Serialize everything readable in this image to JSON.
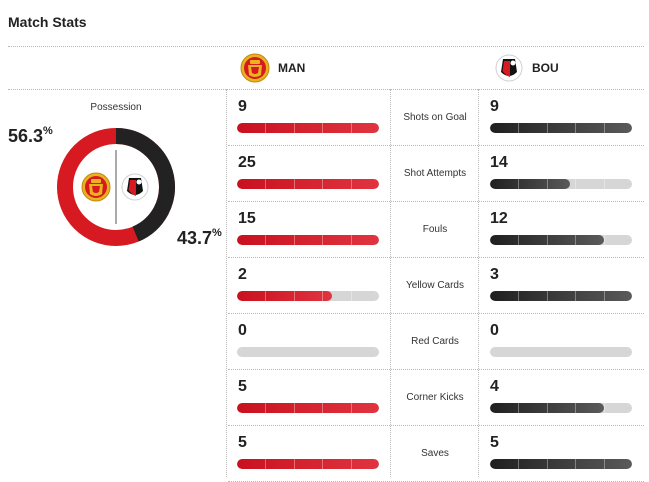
{
  "title": "Match Stats",
  "colors": {
    "home": "#d71921",
    "away": "#222222",
    "track": "#d6d6d6"
  },
  "teams": {
    "home": {
      "abbr": "MAN",
      "logo_icon": "manchester-united-crest-icon"
    },
    "away": {
      "abbr": "BOU",
      "logo_icon": "bournemouth-crest-icon"
    }
  },
  "possession": {
    "label": "Possession",
    "home_value": "56.3",
    "away_value": "43.7",
    "unit": "%",
    "home_fraction": 0.563,
    "away_fraction": 0.437
  },
  "stats": [
    {
      "label": "Shots on Goal",
      "home": "9",
      "away": "9",
      "home_fill": 1.0,
      "away_fill": 1.0
    },
    {
      "label": "Shot Attempts",
      "home": "25",
      "away": "14",
      "home_fill": 1.0,
      "away_fill": 0.56
    },
    {
      "label": "Fouls",
      "home": "15",
      "away": "12",
      "home_fill": 1.0,
      "away_fill": 0.8
    },
    {
      "label": "Yellow Cards",
      "home": "2",
      "away": "3",
      "home_fill": 0.67,
      "away_fill": 1.0
    },
    {
      "label": "Red Cards",
      "home": "0",
      "away": "0",
      "home_fill": 0.0,
      "away_fill": 0.0
    },
    {
      "label": "Corner Kicks",
      "home": "5",
      "away": "4",
      "home_fill": 1.0,
      "away_fill": 0.8
    },
    {
      "label": "Saves",
      "home": "5",
      "away": "5",
      "home_fill": 1.0,
      "away_fill": 1.0
    }
  ]
}
